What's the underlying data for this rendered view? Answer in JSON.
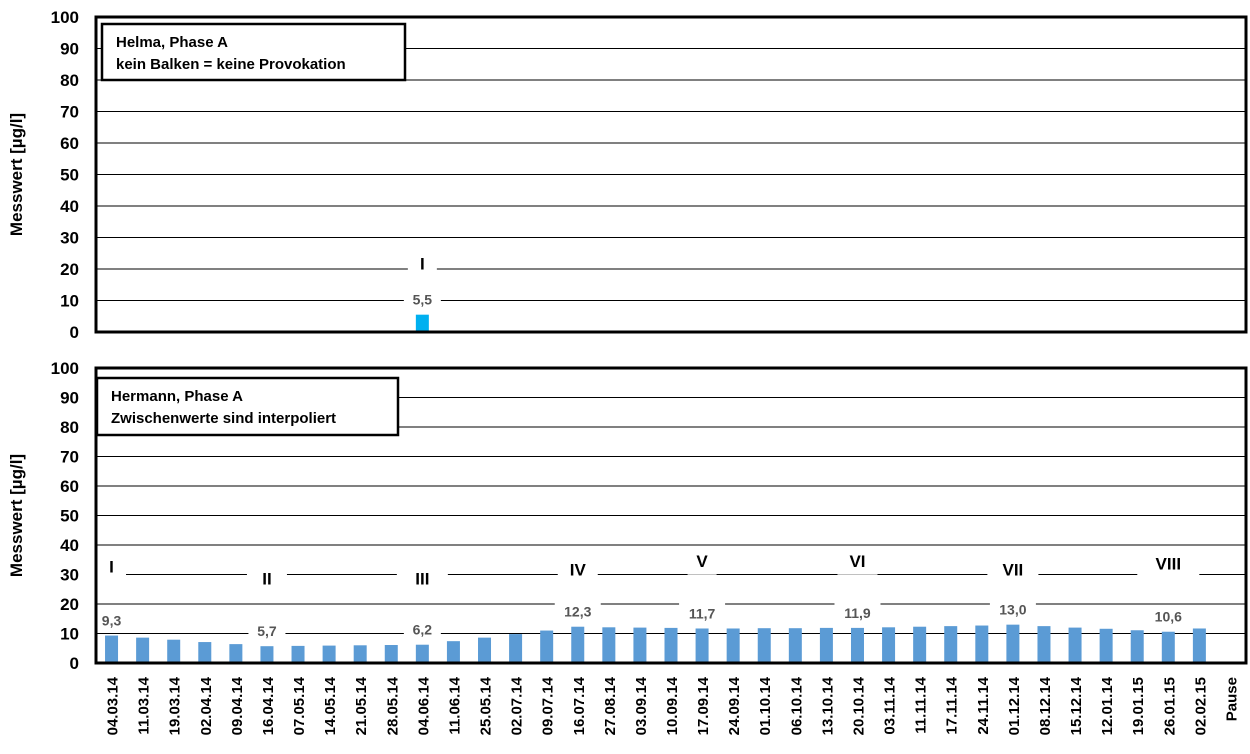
{
  "chart_data": [
    {
      "type": "bar",
      "ylabel": "Messwert [µg/l]",
      "ylim": [
        0,
        100
      ],
      "yticks": [
        0,
        10,
        20,
        30,
        40,
        50,
        60,
        70,
        80,
        90,
        100
      ],
      "grid": true,
      "legend_box": [
        "Helma, Phase A",
        "kein Balken = keine Provokation"
      ],
      "bar_color": "#00b0f0",
      "categories": [
        "04.03.14",
        "11.03.14",
        "19.03.14",
        "02.04.14",
        "09.04.14",
        "16.04.14",
        "07.05.14",
        "14.05.14",
        "21.05.14",
        "28.05.14",
        "04.06.14",
        "11.06.14",
        "25.05.14",
        "02.07.14",
        "09.07.14",
        "16.07.14",
        "27.08.14",
        "03.09.14",
        "10.09.14",
        "17.09.14",
        "24.09.14",
        "01.10.14",
        "06.10.14",
        "13.10.14",
        "20.10.14",
        "03.11.14",
        "11.11.14",
        "17.11.14",
        "24.11.14",
        "01.12.14",
        "08.12.14",
        "15.12.14",
        "12.01.14",
        "19.01.15",
        "26.01.15",
        "02.02.15",
        "Pause"
      ],
      "values": [
        null,
        null,
        null,
        null,
        null,
        null,
        null,
        null,
        null,
        null,
        5.5,
        null,
        null,
        null,
        null,
        null,
        null,
        null,
        null,
        null,
        null,
        null,
        null,
        null,
        null,
        null,
        null,
        null,
        null,
        null,
        null,
        null,
        null,
        null,
        null,
        null,
        null
      ],
      "data_labels": [
        {
          "index": 10,
          "text": "5,5"
        }
      ],
      "phase_labels": [
        {
          "index": 10,
          "text": "I",
          "y": 22
        }
      ]
    },
    {
      "type": "bar",
      "ylabel": "Messwert [µg/l]",
      "ylim": [
        0,
        100
      ],
      "yticks": [
        0,
        10,
        20,
        30,
        40,
        50,
        60,
        70,
        80,
        90,
        100
      ],
      "grid": true,
      "legend_box": [
        "Hermann, Phase A",
        "Zwischenwerte sind interpoliert"
      ],
      "bar_color": "#5b9bd5",
      "categories": [
        "04.03.14",
        "11.03.14",
        "19.03.14",
        "02.04.14",
        "09.04.14",
        "16.04.14",
        "07.05.14",
        "14.05.14",
        "21.05.14",
        "28.05.14",
        "04.06.14",
        "11.06.14",
        "25.05.14",
        "02.07.14",
        "09.07.14",
        "16.07.14",
        "27.08.14",
        "03.09.14",
        "10.09.14",
        "17.09.14",
        "24.09.14",
        "01.10.14",
        "06.10.14",
        "13.10.14",
        "20.10.14",
        "03.11.14",
        "11.11.14",
        "17.11.14",
        "24.11.14",
        "01.12.14",
        "08.12.14",
        "15.12.14",
        "12.01.14",
        "19.01.15",
        "26.01.15",
        "02.02.15",
        "Pause"
      ],
      "values": [
        9.3,
        8.6,
        7.9,
        7.1,
        6.4,
        5.7,
        5.8,
        5.9,
        6.0,
        6.1,
        6.2,
        7.4,
        8.6,
        9.8,
        11.0,
        12.3,
        12.1,
        12.0,
        11.9,
        11.7,
        11.7,
        11.8,
        11.8,
        11.9,
        11.9,
        12.1,
        12.3,
        12.5,
        12.7,
        13.0,
        12.5,
        12.0,
        11.6,
        11.1,
        10.6,
        11.7,
        null
      ],
      "data_labels": [
        {
          "index": 0,
          "text": "9,3"
        },
        {
          "index": 5,
          "text": "5,7"
        },
        {
          "index": 10,
          "text": "6,2"
        },
        {
          "index": 15,
          "text": "12,3"
        },
        {
          "index": 19,
          "text": "11,7"
        },
        {
          "index": 24,
          "text": "11,9"
        },
        {
          "index": 29,
          "text": "13,0"
        },
        {
          "index": 34,
          "text": "10,6"
        }
      ],
      "phase_labels": [
        {
          "index": 0,
          "text": "I",
          "y": 33
        },
        {
          "index": 5,
          "text": "II",
          "y": 29
        },
        {
          "index": 10,
          "text": "III",
          "y": 29
        },
        {
          "index": 15,
          "text": "IV",
          "y": 32
        },
        {
          "index": 19,
          "text": "V",
          "y": 35
        },
        {
          "index": 24,
          "text": "VI",
          "y": 35
        },
        {
          "index": 29,
          "text": "VII",
          "y": 32
        },
        {
          "index": 34,
          "text": "VIII",
          "y": 34
        }
      ]
    }
  ]
}
